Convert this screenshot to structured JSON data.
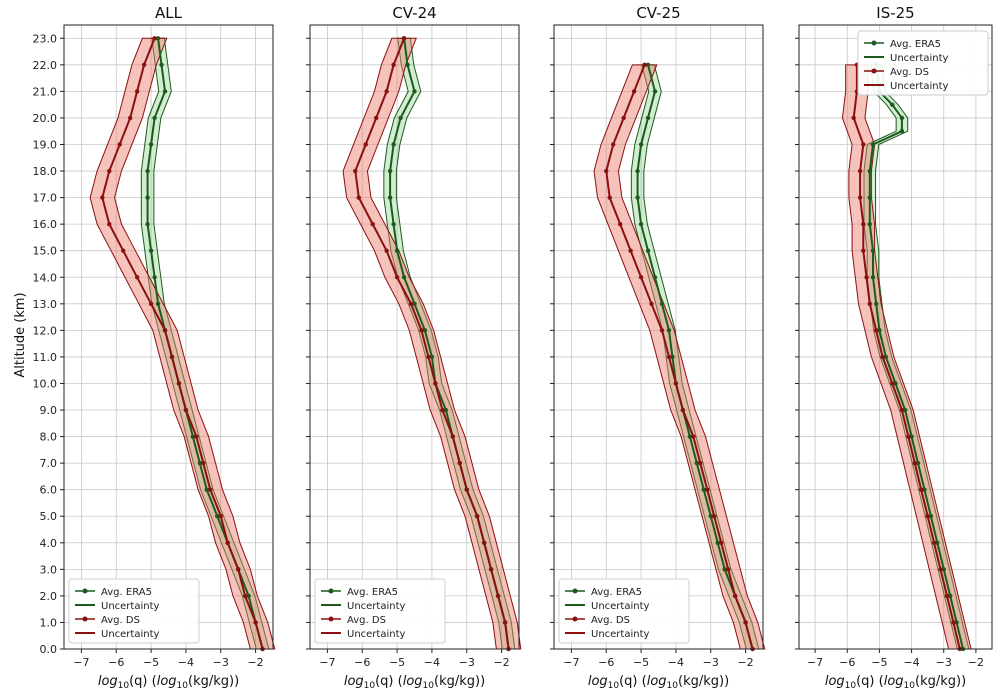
{
  "figure": {
    "ylabel": "Altitude (km)",
    "xlabel_main": "log",
    "xlabel_sub": "10",
    "xlabel_rest": "(q) (log",
    "xlabel_sub2": "10",
    "xlabel_end": "(kg/kg))"
  },
  "colors": {
    "era5": "#1e5a1e",
    "era5_fill": "#7fcf7f",
    "ds": "#8b1010",
    "ds_fill": "#e87a6a",
    "grid": "#c8c8c8"
  },
  "chart_data": [
    {
      "type": "line",
      "title": "ALL",
      "xlim": [
        -7.5,
        -1.5
      ],
      "ylim": [
        0,
        23.5
      ],
      "legend_position": "lower-left",
      "legend": [
        "Avg. ERA5",
        "Uncertainty",
        "Avg. DS",
        "Uncertainty"
      ],
      "series": [
        {
          "name": "Avg. ERA5",
          "points": [
            [
              -1.8,
              0
            ],
            [
              -2.0,
              1
            ],
            [
              -2.2,
              2
            ],
            [
              -2.5,
              3
            ],
            [
              -2.8,
              4
            ],
            [
              -3.1,
              5
            ],
            [
              -3.4,
              6
            ],
            [
              -3.6,
              7
            ],
            [
              -3.8,
              8
            ],
            [
              -4.0,
              9
            ],
            [
              -4.2,
              10
            ],
            [
              -4.4,
              11
            ],
            [
              -4.6,
              12
            ],
            [
              -4.8,
              13
            ],
            [
              -4.9,
              14
            ],
            [
              -5.0,
              15
            ],
            [
              -5.1,
              16
            ],
            [
              -5.1,
              17
            ],
            [
              -5.1,
              18
            ],
            [
              -5.0,
              19
            ],
            [
              -4.9,
              20
            ],
            [
              -4.6,
              21
            ],
            [
              -4.7,
              22
            ],
            [
              -4.8,
              23
            ]
          ]
        },
        {
          "name": "Avg. DS",
          "points": [
            [
              -1.8,
              0
            ],
            [
              -2.0,
              1
            ],
            [
              -2.3,
              2
            ],
            [
              -2.5,
              3
            ],
            [
              -2.8,
              4
            ],
            [
              -3.0,
              5
            ],
            [
              -3.3,
              6
            ],
            [
              -3.5,
              7
            ],
            [
              -3.7,
              8
            ],
            [
              -4.0,
              9
            ],
            [
              -4.2,
              10
            ],
            [
              -4.4,
              11
            ],
            [
              -4.6,
              12
            ],
            [
              -5.0,
              13
            ],
            [
              -5.4,
              14
            ],
            [
              -5.8,
              15
            ],
            [
              -6.2,
              16
            ],
            [
              -6.4,
              17
            ],
            [
              -6.2,
              18
            ],
            [
              -5.9,
              19
            ],
            [
              -5.6,
              20
            ],
            [
              -5.4,
              21
            ],
            [
              -5.2,
              22
            ],
            [
              -4.9,
              23
            ]
          ]
        }
      ]
    },
    {
      "type": "line",
      "title": "CV-24",
      "xlim": [
        -7.5,
        -1.5
      ],
      "ylim": [
        0,
        23.5
      ],
      "legend_position": "lower-left",
      "legend": [
        "Avg. ERA5",
        "Uncertainty",
        "Avg. DS",
        "Uncertainty"
      ],
      "series": [
        {
          "name": "Avg. ERA5",
          "points": [
            [
              -1.8,
              0
            ],
            [
              -1.9,
              1
            ],
            [
              -2.1,
              2
            ],
            [
              -2.3,
              3
            ],
            [
              -2.5,
              4
            ],
            [
              -2.7,
              5
            ],
            [
              -3.0,
              6
            ],
            [
              -3.2,
              7
            ],
            [
              -3.4,
              8
            ],
            [
              -3.6,
              9
            ],
            [
              -3.9,
              10
            ],
            [
              -4.0,
              11
            ],
            [
              -4.2,
              12
            ],
            [
              -4.5,
              13
            ],
            [
              -4.8,
              14
            ],
            [
              -5.0,
              15
            ],
            [
              -5.1,
              16
            ],
            [
              -5.2,
              17
            ],
            [
              -5.2,
              18
            ],
            [
              -5.1,
              19
            ],
            [
              -4.9,
              20
            ],
            [
              -4.5,
              21
            ],
            [
              -4.7,
              22
            ],
            [
              -4.8,
              23
            ]
          ]
        },
        {
          "name": "Avg. DS",
          "points": [
            [
              -1.8,
              0
            ],
            [
              -1.9,
              1
            ],
            [
              -2.1,
              2
            ],
            [
              -2.3,
              3
            ],
            [
              -2.5,
              4
            ],
            [
              -2.7,
              5
            ],
            [
              -3.0,
              6
            ],
            [
              -3.2,
              7
            ],
            [
              -3.4,
              8
            ],
            [
              -3.7,
              9
            ],
            [
              -3.9,
              10
            ],
            [
              -4.1,
              11
            ],
            [
              -4.3,
              12
            ],
            [
              -4.6,
              13
            ],
            [
              -5.0,
              14
            ],
            [
              -5.3,
              15
            ],
            [
              -5.7,
              16
            ],
            [
              -6.1,
              17
            ],
            [
              -6.2,
              18
            ],
            [
              -5.9,
              19
            ],
            [
              -5.6,
              20
            ],
            [
              -5.3,
              21
            ],
            [
              -5.1,
              22
            ],
            [
              -4.8,
              23
            ]
          ]
        }
      ]
    },
    {
      "type": "line",
      "title": "CV-25",
      "xlim": [
        -7.5,
        -1.5
      ],
      "ylim": [
        0,
        23.5
      ],
      "legend_position": "lower-left",
      "legend": [
        "Avg. ERA5",
        "Uncertainty",
        "Avg. DS",
        "Uncertainty"
      ],
      "series": [
        {
          "name": "Avg. ERA5",
          "points": [
            [
              -1.8,
              0
            ],
            [
              -2.0,
              1
            ],
            [
              -2.3,
              2
            ],
            [
              -2.6,
              3
            ],
            [
              -2.8,
              4
            ],
            [
              -3.0,
              5
            ],
            [
              -3.2,
              6
            ],
            [
              -3.4,
              7
            ],
            [
              -3.6,
              8
            ],
            [
              -3.8,
              9
            ],
            [
              -4.0,
              10
            ],
            [
              -4.1,
              11
            ],
            [
              -4.2,
              12
            ],
            [
              -4.4,
              13
            ],
            [
              -4.6,
              14
            ],
            [
              -4.8,
              15
            ],
            [
              -5.0,
              16
            ],
            [
              -5.1,
              17
            ],
            [
              -5.1,
              18
            ],
            [
              -5.0,
              19
            ],
            [
              -4.8,
              20
            ],
            [
              -4.6,
              21
            ],
            [
              -4.8,
              22
            ]
          ]
        },
        {
          "name": "Avg. DS",
          "points": [
            [
              -1.8,
              0
            ],
            [
              -2.0,
              1
            ],
            [
              -2.3,
              2
            ],
            [
              -2.5,
              3
            ],
            [
              -2.7,
              4
            ],
            [
              -2.9,
              5
            ],
            [
              -3.1,
              6
            ],
            [
              -3.3,
              7
            ],
            [
              -3.5,
              8
            ],
            [
              -3.8,
              9
            ],
            [
              -4.0,
              10
            ],
            [
              -4.2,
              11
            ],
            [
              -4.4,
              12
            ],
            [
              -4.7,
              13
            ],
            [
              -5.0,
              14
            ],
            [
              -5.3,
              15
            ],
            [
              -5.6,
              16
            ],
            [
              -5.9,
              17
            ],
            [
              -6.0,
              18
            ],
            [
              -5.8,
              19
            ],
            [
              -5.5,
              20
            ],
            [
              -5.2,
              21
            ],
            [
              -4.9,
              22
            ]
          ]
        }
      ]
    },
    {
      "type": "line",
      "title": "IS-25",
      "xlim": [
        -7.5,
        -1.5
      ],
      "ylim": [
        0,
        23.5
      ],
      "legend_position": "upper-right",
      "legend": [
        "Avg. ERA5",
        "Uncertainty",
        "Avg. DS",
        "Uncertainty"
      ],
      "series": [
        {
          "name": "Avg. ERA5",
          "points": [
            [
              -2.4,
              0
            ],
            [
              -2.6,
              1
            ],
            [
              -2.8,
              2
            ],
            [
              -3.0,
              3
            ],
            [
              -3.2,
              4
            ],
            [
              -3.4,
              5
            ],
            [
              -3.6,
              6
            ],
            [
              -3.8,
              7
            ],
            [
              -4.0,
              8
            ],
            [
              -4.2,
              9
            ],
            [
              -4.5,
              10
            ],
            [
              -4.8,
              11
            ],
            [
              -5.0,
              12
            ],
            [
              -5.1,
              13
            ],
            [
              -5.2,
              14
            ],
            [
              -5.2,
              15
            ],
            [
              -5.3,
              16
            ],
            [
              -5.3,
              17
            ],
            [
              -5.3,
              18
            ],
            [
              -5.2,
              19
            ],
            [
              -4.3,
              19.5
            ],
            [
              -4.3,
              20
            ],
            [
              -4.6,
              20.5
            ],
            [
              -5.0,
              21
            ],
            [
              -5.1,
              22
            ]
          ]
        },
        {
          "name": "Avg. DS",
          "points": [
            [
              -2.5,
              0
            ],
            [
              -2.7,
              1
            ],
            [
              -2.9,
              2
            ],
            [
              -3.1,
              3
            ],
            [
              -3.3,
              4
            ],
            [
              -3.5,
              5
            ],
            [
              -3.7,
              6
            ],
            [
              -3.9,
              7
            ],
            [
              -4.1,
              8
            ],
            [
              -4.3,
              9
            ],
            [
              -4.6,
              10
            ],
            [
              -4.9,
              11
            ],
            [
              -5.1,
              12
            ],
            [
              -5.3,
              13
            ],
            [
              -5.4,
              14
            ],
            [
              -5.5,
              15
            ],
            [
              -5.5,
              16
            ],
            [
              -5.6,
              17
            ],
            [
              -5.6,
              18
            ],
            [
              -5.5,
              19
            ],
            [
              -5.8,
              20
            ],
            [
              -5.7,
              21
            ],
            [
              -5.7,
              22
            ]
          ]
        }
      ]
    }
  ],
  "axes": {
    "yticks": [
      0,
      1,
      2,
      3,
      4,
      5,
      6,
      7,
      8,
      9,
      10,
      11,
      12,
      13,
      14,
      15,
      16,
      17,
      18,
      19,
      20,
      21,
      22,
      23
    ],
    "xticks": [
      -7,
      -6,
      -5,
      -4,
      -3,
      -2
    ]
  }
}
